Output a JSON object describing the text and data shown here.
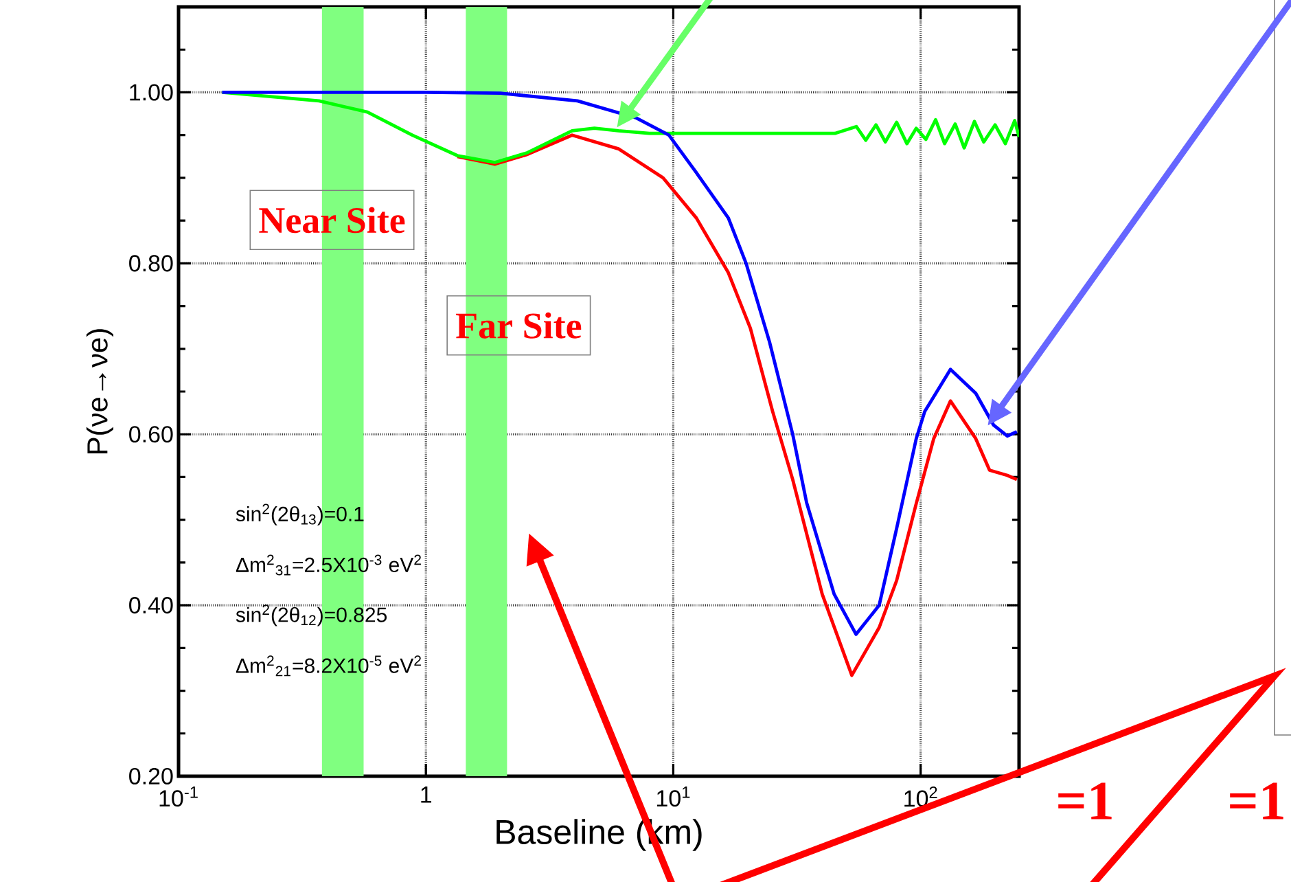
{
  "chart_data": {
    "type": "line",
    "xlabel": "Baseline (km)",
    "ylabel": "P(νe→νe)",
    "log": "x",
    "xlim": [
      0.1,
      250
    ],
    "ylim": [
      0.2,
      1.1
    ],
    "xticks": [
      {
        "value": 0.1,
        "label": "10$^{-1}$"
      },
      1,
      {
        "value": 10,
        "label": "10$^{1}$"
      },
      {
        "value": 100,
        "label": "10$^{2}$"
      }
    ],
    "yticks": [
      {
        "value": 0.2,
        "label": "0.20"
      },
      {
        "value": 0.25,
        "label": null
      },
      {
        "value": 0.3,
        "label": null
      },
      {
        "value": 0.35,
        "label": null
      },
      {
        "value": 0.4,
        "label": "0.40"
      },
      {
        "value": 0.45,
        "label": null
      },
      {
        "value": 0.5,
        "label": null
      },
      {
        "value": 0.55,
        "label": null
      },
      {
        "value": 0.6,
        "label": "0.60"
      },
      {
        "value": 0.65,
        "label": null
      },
      {
        "value": 0.7,
        "label": null
      },
      {
        "value": 0.75,
        "label": null
      },
      {
        "value": 0.8,
        "label": "0.80"
      },
      {
        "value": 0.85,
        "label": null
      },
      {
        "value": 0.9,
        "label": null
      },
      {
        "value": 0.95,
        "label": null
      },
      {
        "value": 1.0,
        "label": "1.00"
      },
      {
        "value": 1.05,
        "label": null
      }
    ],
    "grid": true,
    "marker": "none",
    "line_style": "solid",
    "series": [
      {
        "color": "#ff0000",
        "x": [
          1.34,
          1.9,
          2.55,
          3.9,
          6.0,
          9.1,
          12.4,
          16.7,
          20.5,
          25.2,
          30.4,
          40,
          52.7,
          68,
          80,
          96,
          113,
          132,
          167,
          190,
          224,
          245
        ],
        "values": [
          0.925,
          0.916,
          0.927,
          0.95,
          0.934,
          0.9,
          0.853,
          0.789,
          0.724,
          0.627,
          0.547,
          0.413,
          0.318,
          0.374,
          0.429,
          0.519,
          0.595,
          0.639,
          0.595,
          0.558,
          0.552,
          0.547
        ]
      },
      {
        "color": "#00ff00",
        "x": [
          0.15,
          0.37,
          0.58,
          0.88,
          1.34,
          1.9,
          2.55,
          3.9,
          4.8,
          6.0,
          8,
          20,
          45,
          55,
          60,
          66,
          72,
          80,
          88,
          96,
          105,
          115,
          125,
          138,
          150,
          165,
          180,
          200,
          220,
          240,
          250
        ],
        "values": [
          1.0,
          0.99,
          0.977,
          0.95,
          0.926,
          0.918,
          0.929,
          0.955,
          0.958,
          0.955,
          0.952,
          0.952,
          0.952,
          0.96,
          0.944,
          0.962,
          0.942,
          0.965,
          0.94,
          0.958,
          0.945,
          0.968,
          0.94,
          0.963,
          0.935,
          0.966,
          0.942,
          0.962,
          0.94,
          0.967,
          0.948
        ]
      },
      {
        "color": "#0000ff",
        "x": [
          0.15,
          1,
          2,
          4.1,
          7.1,
          9.6,
          12.4,
          16.7,
          19.7,
          24.5,
          30.4,
          34.6,
          44.7,
          54.8,
          68,
          80,
          96,
          104,
          132,
          167,
          197,
          224,
          245
        ],
        "values": [
          1.0,
          1.0,
          0.999,
          0.99,
          0.97,
          0.95,
          0.906,
          0.853,
          0.8,
          0.708,
          0.6,
          0.52,
          0.413,
          0.366,
          0.4,
          0.49,
          0.595,
          0.627,
          0.676,
          0.648,
          0.611,
          0.598,
          0.603
        ]
      }
    ],
    "bands": [
      {
        "axis": "x",
        "from": 0.38,
        "to": 0.56,
        "label": "Near Site",
        "color": "#80ff80"
      },
      {
        "axis": "x",
        "from": 1.45,
        "to": 2.13,
        "label": "Far Site",
        "color": "#80ff80"
      }
    ],
    "annotations": [
      "sin$^{2}$(2θ$_{13}$)=0.1",
      "Δm$^{2}$$_{31}$=2.5X10$^{-3}$ eV$^{2}$",
      "sin$^{2}$(2θ$_{12}$)=0.825",
      "Δm$^{2}$$_{21}$=8.2X10$^{-5}$ eV$^{2}$",
      "=1",
      "=1"
    ]
  }
}
